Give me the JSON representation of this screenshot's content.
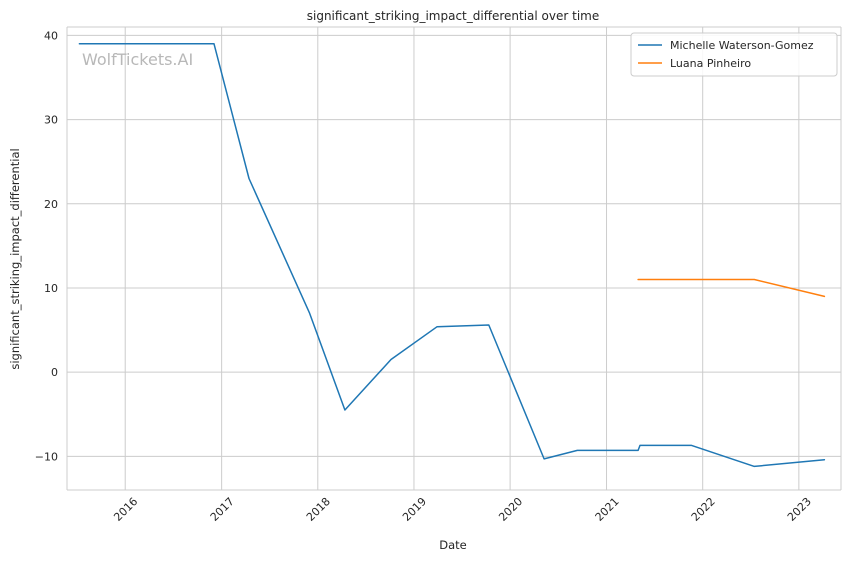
{
  "chart_data": {
    "type": "line",
    "title": "significant_striking_impact_differential over time",
    "xlabel": "Date",
    "ylabel": "significant_striking_impact_differential",
    "watermark": "WolfTickets.AI",
    "x_tick_labels": [
      "2016",
      "2017",
      "2018",
      "2019",
      "2020",
      "2021",
      "2022",
      "2023"
    ],
    "y_tick_labels": [
      "−10",
      "0",
      "10",
      "20",
      "30",
      "40"
    ],
    "xlim": [
      "2015-05-25",
      "2023-06-10"
    ],
    "ylim": [
      -14,
      41
    ],
    "grid": true,
    "legend_position": "top-right",
    "series": [
      {
        "name": "Michelle Waterson-Gomez",
        "color": "#1f77b4",
        "points": [
          [
            "2015-07-11",
            39.0
          ],
          [
            "2016-12-03",
            39.0
          ],
          [
            "2017-04-15",
            23.0
          ],
          [
            "2017-12-01",
            7.0
          ],
          [
            "2018-04-14",
            -4.5
          ],
          [
            "2018-10-06",
            1.5
          ],
          [
            "2019-03-30",
            5.4
          ],
          [
            "2019-10-12",
            5.6
          ],
          [
            "2020-05-09",
            -10.3
          ],
          [
            "2020-09-12",
            -9.3
          ],
          [
            "2021-05-01",
            -9.3
          ],
          [
            "2021-05-08",
            -8.7
          ],
          [
            "2021-11-20",
            -8.7
          ],
          [
            "2022-07-16",
            -11.2
          ],
          [
            "2023-04-08",
            -10.4
          ]
        ]
      },
      {
        "name": "Luana Pinheiro",
        "color": "#ff7f0e",
        "points": [
          [
            "2021-05-01",
            11.0
          ],
          [
            "2022-07-16",
            11.0
          ],
          [
            "2023-04-08",
            9.0
          ]
        ]
      }
    ]
  }
}
